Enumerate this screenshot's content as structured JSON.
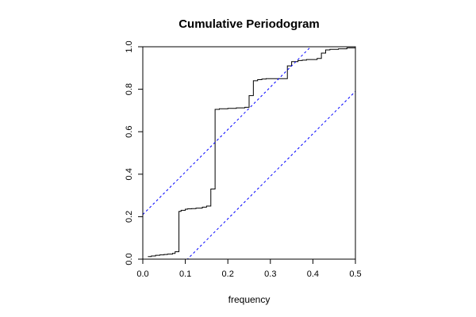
{
  "chart_data": {
    "type": "line",
    "title": "Cumulative Periodogram",
    "xlabel": "frequency",
    "ylabel": "",
    "xlim": [
      0,
      0.5
    ],
    "ylim": [
      0,
      1
    ],
    "x_ticks": [
      "0.0",
      "0.1",
      "0.2",
      "0.3",
      "0.4",
      "0.5"
    ],
    "y_ticks": [
      "0.0",
      "0.2",
      "0.4",
      "0.6",
      "0.8",
      "1.0"
    ],
    "grid": false,
    "series": [
      {
        "style": "step",
        "color": "#000000",
        "x": [
          0.012,
          0.02,
          0.03,
          0.04,
          0.05,
          0.058,
          0.07,
          0.076,
          0.085,
          0.09,
          0.1,
          0.105,
          0.115,
          0.125,
          0.14,
          0.15,
          0.16,
          0.17,
          0.18,
          0.2,
          0.22,
          0.24,
          0.25,
          0.26,
          0.27,
          0.28,
          0.29,
          0.31,
          0.33,
          0.34,
          0.35,
          0.365,
          0.375,
          0.385,
          0.4,
          0.41,
          0.42,
          0.43,
          0.44,
          0.46,
          0.48,
          0.5
        ],
        "y": [
          0.012,
          0.015,
          0.018,
          0.02,
          0.022,
          0.024,
          0.027,
          0.035,
          0.225,
          0.23,
          0.235,
          0.237,
          0.238,
          0.24,
          0.245,
          0.25,
          0.33,
          0.705,
          0.708,
          0.71,
          0.712,
          0.715,
          0.77,
          0.84,
          0.845,
          0.848,
          0.85,
          0.85,
          0.85,
          0.91,
          0.93,
          0.935,
          0.937,
          0.94,
          0.94,
          0.945,
          0.97,
          0.985,
          0.988,
          0.99,
          0.995,
          0.995
        ]
      },
      {
        "style": "dashed",
        "color": "#0000ff",
        "x": [
          0,
          0.5
        ],
        "y": [
          0.21,
          1.21
        ]
      },
      {
        "style": "dashed",
        "color": "#0000ff",
        "x": [
          0,
          0.5
        ],
        "y": [
          -0.21,
          0.79
        ]
      }
    ]
  }
}
